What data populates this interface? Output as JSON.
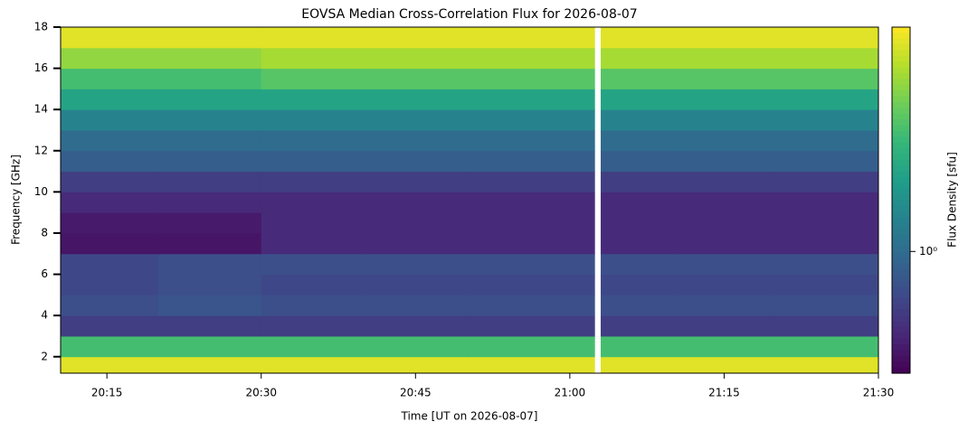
{
  "chart_data": {
    "type": "heatmap",
    "title": "EOVSA Median Cross-Correlation Flux for 2026-08-07",
    "x_label": "Time [UT on 2026-08-07]",
    "y_label": "Frequency [GHz]",
    "colorbar_label": "Flux Density [sfu]",
    "colormap": "viridis",
    "color_scale": "log",
    "x_bins": [
      1210.5,
      1220,
      1230,
      1240,
      1250,
      1262.4,
      1263,
      1270,
      1280,
      1290
    ],
    "y_bins": [
      1.2,
      2,
      3,
      4,
      5,
      6,
      7,
      8,
      9,
      10,
      11,
      12,
      13,
      14,
      15,
      16,
      17,
      18
    ],
    "z": [
      [
        1.8,
        1.8,
        1.8,
        1.8,
        1.8,
        null,
        1.8,
        1.8,
        1.8
      ],
      [
        1.4,
        1.4,
        1.4,
        1.4,
        1.4,
        null,
        1.4,
        1.4,
        1.4
      ],
      [
        0.85,
        0.85,
        0.85,
        0.85,
        0.85,
        null,
        0.85,
        0.85,
        0.85
      ],
      [
        0.9,
        0.92,
        0.9,
        0.9,
        0.9,
        null,
        0.9,
        0.9,
        0.9
      ],
      [
        0.88,
        0.9,
        0.88,
        0.88,
        0.88,
        null,
        0.88,
        0.88,
        0.88
      ],
      [
        0.88,
        0.9,
        0.9,
        0.9,
        0.9,
        null,
        0.9,
        0.9,
        0.9
      ],
      [
        0.75,
        0.75,
        0.8,
        0.8,
        0.8,
        null,
        0.8,
        0.8,
        0.8
      ],
      [
        0.76,
        0.76,
        0.8,
        0.8,
        0.8,
        null,
        0.8,
        0.8,
        0.8
      ],
      [
        0.8,
        0.8,
        0.8,
        0.8,
        0.8,
        null,
        0.8,
        0.8,
        0.8
      ],
      [
        0.85,
        0.85,
        0.85,
        0.85,
        0.85,
        null,
        0.85,
        0.85,
        0.85
      ],
      [
        0.95,
        0.95,
        0.95,
        0.95,
        0.95,
        null,
        0.95,
        0.95,
        0.95
      ],
      [
        1.0,
        1.0,
        1.0,
        1.0,
        1.0,
        null,
        1.0,
        1.0,
        1.0
      ],
      [
        1.1,
        1.1,
        1.1,
        1.1,
        1.1,
        null,
        1.1,
        1.1,
        1.1
      ],
      [
        1.25,
        1.25,
        1.25,
        1.25,
        1.25,
        null,
        1.25,
        1.25,
        1.25
      ],
      [
        1.4,
        1.4,
        1.45,
        1.45,
        1.45,
        null,
        1.45,
        1.45,
        1.45
      ],
      [
        1.6,
        1.6,
        1.65,
        1.65,
        1.65,
        null,
        1.65,
        1.65,
        1.65
      ],
      [
        1.8,
        1.8,
        1.8,
        1.8,
        1.8,
        null,
        1.8,
        1.8,
        1.8
      ]
    ],
    "xlim": [
      1210.5,
      1290
    ],
    "xticks": [
      {
        "value": 1215,
        "label": "20:15"
      },
      {
        "value": 1230,
        "label": "20:30"
      },
      {
        "value": 1245,
        "label": "20:45"
      },
      {
        "value": 1260,
        "label": "21:00"
      },
      {
        "value": 1275,
        "label": "21:15"
      },
      {
        "value": 1290,
        "label": "21:30"
      }
    ],
    "ylim": [
      1.2,
      18
    ],
    "yticks": [
      2,
      4,
      6,
      8,
      10,
      12,
      14,
      16,
      18
    ],
    "clim": [
      0.71,
      1.88
    ],
    "cticks": [
      {
        "value": 1,
        "label": "10⁰"
      }
    ]
  }
}
